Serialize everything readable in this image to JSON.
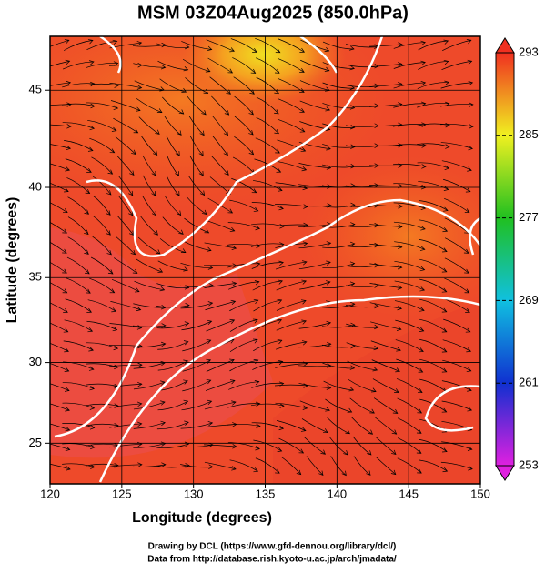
{
  "chart_data": {
    "type": "map",
    "title": "MSM 03Z04Aug2025 (850.0hPa)",
    "xlabel": "Longitude (degrees)",
    "ylabel": "Latitude  (degrees)",
    "xlim": [
      120,
      150
    ],
    "xticks": [
      120,
      125,
      130,
      135,
      140,
      145,
      150
    ],
    "ylim": [
      22.4,
      47.6
    ],
    "yticks": [
      25,
      30,
      35,
      40,
      45
    ],
    "projection": "mercator",
    "grid": true,
    "colorbar": {
      "lim": [
        253,
        293
      ],
      "ticks": [
        253,
        261,
        269,
        277,
        285,
        293
      ],
      "colors": [
        "#e020e0",
        "#1030d0",
        "#10c0e0",
        "#20c020",
        "#f0f020",
        "#f03020"
      ]
    },
    "footer": [
      "Drawing by DCL (https://www.gfd-dennou.org/library/dcl/)",
      "Data from http://database.rish.kyoto-u.ac.jp/arch/jmadata/"
    ]
  }
}
